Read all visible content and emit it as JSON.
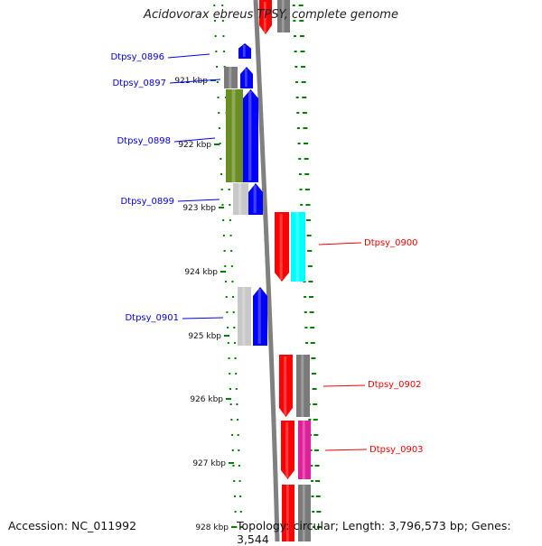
{
  "title": "Acidovorax ebreus TPSY, complete genome",
  "accession": "Accession: NC_011992",
  "summary": "Topology: circular; Length: 3,796,573 bp; Genes: 3,544",
  "colors": {
    "blue": "#0000ff",
    "green": "#6b8e23",
    "gray": "#7a7a7a",
    "lightgray": "#c8c8c8",
    "red": "#ff0000",
    "cyan": "#00ffff",
    "magenta": "#e0209a",
    "tick": "#008000",
    "backbone": "#808080"
  },
  "ticks": [
    {
      "label": "921 kbp"
    },
    {
      "label": "922 kbp"
    },
    {
      "label": "923 kbp"
    },
    {
      "label": "924 kbp"
    },
    {
      "label": "925 kbp"
    },
    {
      "label": "926 kbp"
    },
    {
      "label": "927 kbp"
    },
    {
      "label": "928 kbp"
    }
  ],
  "left_labels": [
    "Dtpsy_0896",
    "Dtpsy_0897",
    "Dtpsy_0898",
    "Dtpsy_0899",
    "Dtpsy_0901"
  ],
  "right_labels": [
    "Dtpsy_0900",
    "Dtpsy_0902",
    "Dtpsy_0903"
  ]
}
